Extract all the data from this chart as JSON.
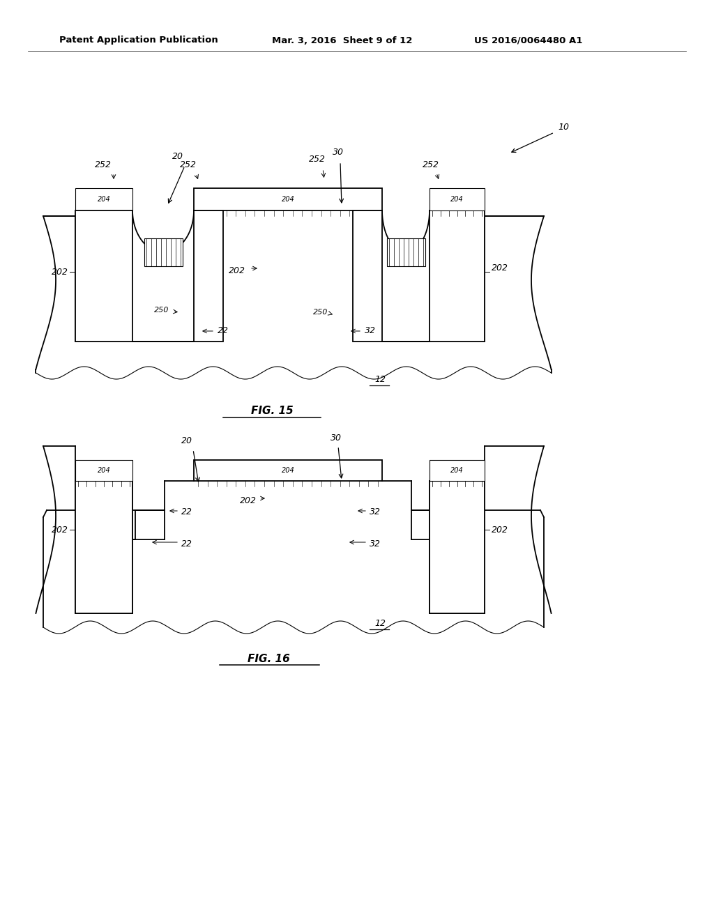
{
  "background_color": "#ffffff",
  "header_text": "Patent Application Publication",
  "header_date": "Mar. 3, 2016  Sheet 9 of 12",
  "header_patent": "US 2016/0064480 A1"
}
